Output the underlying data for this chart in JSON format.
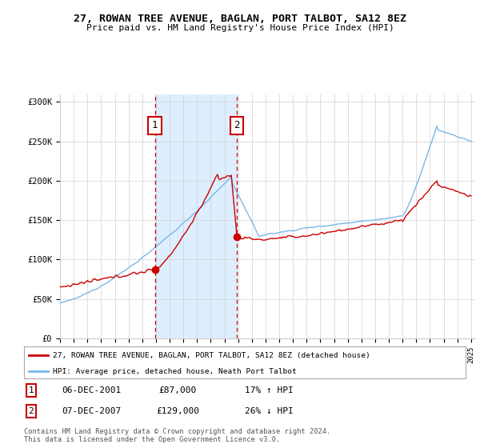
{
  "title": "27, ROWAN TREE AVENUE, BAGLAN, PORT TALBOT, SA12 8EZ",
  "subtitle": "Price paid vs. HM Land Registry's House Price Index (HPI)",
  "ylim": [
    0,
    310000
  ],
  "yticks": [
    0,
    50000,
    100000,
    150000,
    200000,
    250000,
    300000
  ],
  "ytick_labels": [
    "£0",
    "£50K",
    "£100K",
    "£150K",
    "£200K",
    "£250K",
    "£300K"
  ],
  "purchase1_year": 2001.92,
  "purchase1_price": 87000,
  "purchase1_label": "1",
  "purchase1_date": "06-DEC-2001",
  "purchase1_hpi_pct": "17% ↑ HPI",
  "purchase2_year": 2007.92,
  "purchase2_price": 129000,
  "purchase2_label": "2",
  "purchase2_date": "07-DEC-2007",
  "purchase2_hpi_pct": "26% ↓ HPI",
  "hpi_line_color": "#7ab8e8",
  "price_line_color": "#cc0000",
  "shade_color": "#ddeeff",
  "vline_color": "#cc0000",
  "legend_address": "27, ROWAN TREE AVENUE, BAGLAN, PORT TALBOT, SA12 8EZ (detached house)",
  "legend_hpi": "HPI: Average price, detached house, Neath Port Talbot",
  "footer": "Contains HM Land Registry data © Crown copyright and database right 2024.\nThis data is licensed under the Open Government Licence v3.0.",
  "background_color": "#ffffff"
}
